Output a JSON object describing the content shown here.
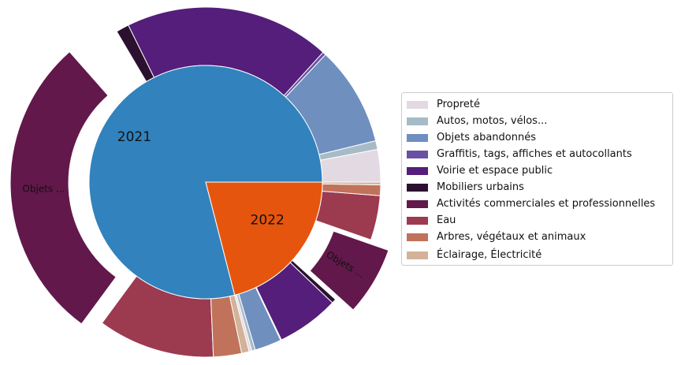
{
  "chart_data": {
    "type": "pie",
    "inner": {
      "labels": [
        "2021",
        "2022"
      ],
      "values": [
        79,
        21
      ],
      "colors": [
        "#3182bd",
        "#e6550d"
      ]
    },
    "outer": {
      "year_2021": {
        "values": [
          3.0,
          0.8,
          9.2,
          0.3,
          19.0,
          1.2,
          3.0,
          28.4,
          10.8,
          2.6,
          0.7
        ],
        "colors": [
          "#e3d9e3",
          "#a7bbc7",
          "#6f8fbf",
          "#6a51a3",
          "#541e7a",
          "#2b112f",
          "#ffffff",
          "#62184a",
          "#9c3a50",
          "#c0735a",
          "#d3b29a"
        ],
        "slice_labels": [
          "",
          "",
          "",
          "",
          "",
          "",
          "",
          "Objets ...",
          "",
          "",
          ""
        ]
      },
      "year_2022": {
        "values": [
          0.3,
          0.4,
          3.0,
          0.1,
          7.0,
          0.5,
          7.7,
          5.0,
          1.2,
          0.3
        ],
        "colors": [
          "#e3d9e3",
          "#a7bbc7",
          "#6f8fbf",
          "#6a51a3",
          "#541e7a",
          "#2b112f",
          "#62184a",
          "#9c3a50",
          "#c0735a",
          "#d3b29a"
        ],
        "slice_labels": [
          "",
          "",
          "",
          "",
          "",
          "",
          "Objets ...",
          "",
          "",
          ""
        ]
      }
    },
    "legend": {
      "position": "right",
      "entries": [
        {
          "label": "Propreté",
          "color": "#e3d9e3"
        },
        {
          "label": "Autos, motos, vélos...",
          "color": "#a7bbc7"
        },
        {
          "label": "Objets abandonnés",
          "color": "#6f8fbf"
        },
        {
          "label": "Graffitis, tags, affiches et autocollants",
          "color": "#6a51a3"
        },
        {
          "label": "Voirie et espace public",
          "color": "#541e7a"
        },
        {
          "label": "Mobiliers urbains",
          "color": "#2b112f"
        },
        {
          "label": "Activités commerciales et professionnelles",
          "color": "#62184a"
        },
        {
          "label": "Eau",
          "color": "#9c3a50"
        },
        {
          "label": "Arbres, végétaux et animaux",
          "color": "#c0735a"
        },
        {
          "label": "Éclairage, Électricité",
          "color": "#d3b29a"
        }
      ]
    }
  }
}
